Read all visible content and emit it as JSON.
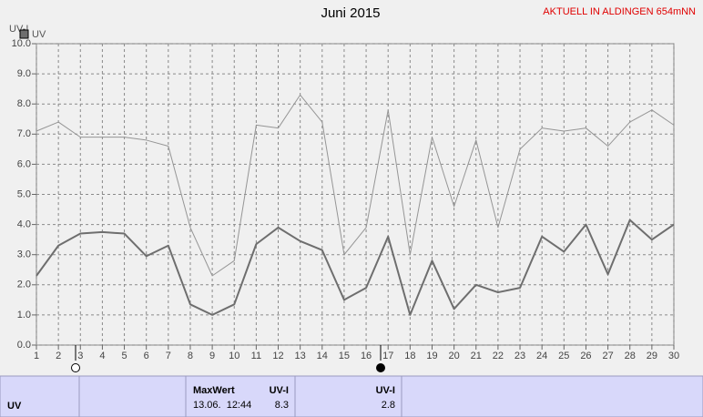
{
  "chart_data": {
    "type": "line",
    "title": "Juni 2015",
    "annotation": "AKTUELL IN ALDINGEN 654mNN",
    "y_label": "UV-I",
    "x": [
      1,
      2,
      3,
      4,
      5,
      6,
      7,
      8,
      9,
      10,
      11,
      12,
      13,
      14,
      15,
      16,
      17,
      18,
      19,
      20,
      21,
      22,
      23,
      24,
      25,
      26,
      27,
      28,
      29,
      30
    ],
    "xlim": [
      1,
      30
    ],
    "xticks": [
      1,
      2,
      3,
      4,
      5,
      6,
      7,
      8,
      9,
      10,
      11,
      12,
      13,
      14,
      15,
      16,
      17,
      18,
      19,
      20,
      21,
      22,
      23,
      24,
      25,
      26,
      27,
      28,
      29,
      30
    ],
    "ylim": [
      0,
      10
    ],
    "yticks": [
      {
        "value": 0,
        "label": "0.0"
      },
      {
        "value": 1,
        "label": "1.0"
      },
      {
        "value": 2,
        "label": "2.0"
      },
      {
        "value": 3,
        "label": "3.0"
      },
      {
        "value": 4,
        "label": "4.0"
      },
      {
        "value": 5,
        "label": "5.0"
      },
      {
        "value": 6,
        "label": "6.0"
      },
      {
        "value": 7,
        "label": "7.0"
      },
      {
        "value": 8,
        "label": "8.0"
      },
      {
        "value": 9,
        "label": "9.0"
      },
      {
        "value": 10,
        "label": "10.0"
      }
    ],
    "grid": true,
    "series": [
      {
        "name": "UV",
        "color": "#6e6e6e",
        "width": 2,
        "values": [
          2.3,
          3.3,
          3.7,
          3.75,
          3.7,
          2.95,
          3.3,
          1.35,
          1.0,
          1.35,
          3.35,
          3.9,
          3.45,
          3.15,
          1.5,
          1.9,
          3.6,
          1.0,
          2.8,
          1.2,
          2.0,
          1.75,
          1.9,
          3.6,
          3.1,
          4.0,
          2.35,
          4.15,
          3.5,
          4.0
        ]
      },
      {
        "color": "#959595",
        "width": 1,
        "values": [
          7.1,
          7.4,
          6.9,
          6.9,
          6.9,
          6.8,
          6.6,
          3.9,
          2.3,
          2.8,
          7.3,
          7.2,
          8.3,
          7.4,
          3.0,
          3.9,
          7.8,
          3.0,
          6.9,
          4.6,
          6.8,
          3.9,
          6.5,
          7.2,
          7.1,
          7.2,
          6.6,
          7.4,
          7.8,
          7.3
        ]
      }
    ]
  },
  "table": {
    "row_label": "UV",
    "max_header": "MaxWert",
    "max_unit": "UV-I",
    "max_time": "13.06.  12:44",
    "max_value": 8.3,
    "current_unit": "UV-I",
    "current_value": 2.8
  }
}
